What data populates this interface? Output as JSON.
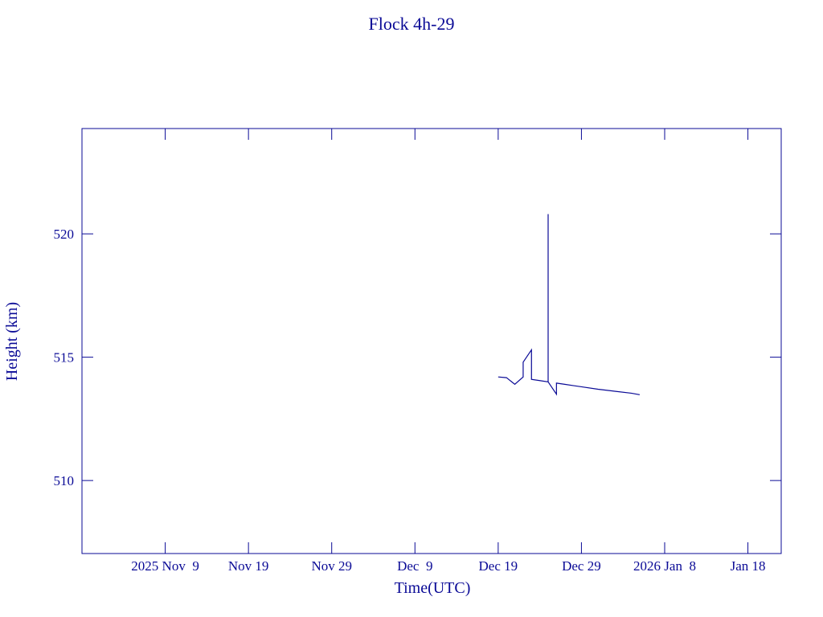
{
  "chart_data": {
    "type": "line",
    "title": "Flock 4h-29",
    "xlabel": "Time(UTC)",
    "ylabel": "Height (km)",
    "color": "#0a0a96",
    "xlim": [
      "2025-10-30",
      "2026-01-22"
    ],
    "xticks": [
      {
        "value": "2025-11-09",
        "label": "2025 Nov  9"
      },
      {
        "value": "2025-11-19",
        "label": "Nov 19"
      },
      {
        "value": "2025-11-29",
        "label": "Nov 29"
      },
      {
        "value": "2025-12-09",
        "label": "Dec  9"
      },
      {
        "value": "2025-12-19",
        "label": "Dec 19"
      },
      {
        "value": "2025-12-29",
        "label": "Dec 29"
      },
      {
        "value": "2026-01-08",
        "label": "2026 Jan  8"
      },
      {
        "value": "2026-01-18",
        "label": "Jan 18"
      }
    ],
    "ylim": [
      507.04,
      524.27
    ],
    "yticks": [
      510,
      515,
      520
    ],
    "x": [
      "2025-12-19",
      "2025-12-20",
      "2025-12-21",
      "2025-12-22",
      "2025-12-22",
      "2025-12-23",
      "2025-12-23",
      "2025-12-24",
      "2025-12-25",
      "2025-12-25",
      "2025-12-25",
      "2025-12-26",
      "2025-12-26",
      "2025-12-27",
      "2025-12-28",
      "2025-12-29",
      "2025-12-31",
      "2026-01-02",
      "2026-01-04",
      "2026-01-05"
    ],
    "values": [
      514.2,
      514.17,
      513.9,
      514.2,
      514.8,
      515.3,
      514.1,
      514.05,
      514.0,
      520.8,
      514.0,
      513.5,
      513.95,
      513.9,
      513.85,
      513.8,
      513.7,
      513.62,
      513.54,
      513.48
    ]
  }
}
